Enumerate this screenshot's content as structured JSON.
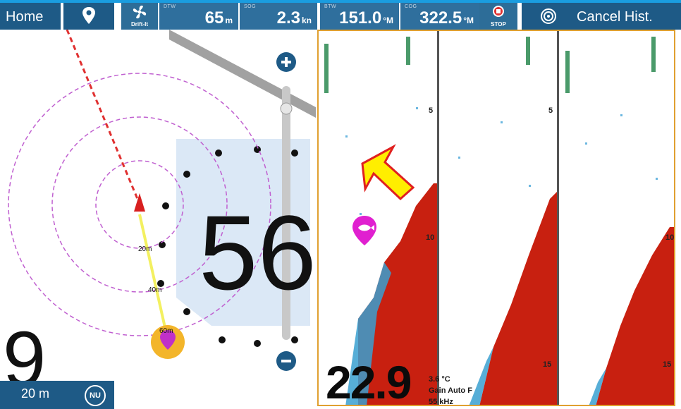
{
  "header": {
    "home_label": "Home",
    "waypoint_icon": "location-pin-icon",
    "drift_label": "Drift-It",
    "dtw": {
      "label": "DTW",
      "value": "65",
      "unit": "m"
    },
    "sog": {
      "label": "SOG",
      "value": "2.3",
      "unit": "kn"
    },
    "btw": {
      "label": "BTW",
      "value": "151.0",
      "unit": "°M"
    },
    "cog": {
      "label": "COG",
      "value": "322.5",
      "unit": "°M"
    },
    "stop_label": "STOP",
    "cancel_label": "Cancel Hist."
  },
  "map": {
    "ring_labels": [
      "20m",
      "40m",
      "60m"
    ],
    "overlay_digits": "56",
    "overlay_digit_bottom": "9",
    "scale_label": "20 m",
    "orientation_label": "NU",
    "zoom_in_icon": "plus-icon",
    "zoom_out_icon": "minus-icon"
  },
  "sonar": {
    "depth_value": "22.9",
    "temperature": "3.6 °C",
    "gain": "Gain Auto F",
    "frequency": "55 kHz",
    "depth_marks": [
      "5",
      "10",
      "15"
    ]
  },
  "colors": {
    "bar": "#1e5a86",
    "accent": "#1a9de0",
    "frame": "#e0a030",
    "route": "#e03030",
    "rings": "#c060d0",
    "fish_marker": "#e020d0",
    "arrow": "#ffee00"
  }
}
